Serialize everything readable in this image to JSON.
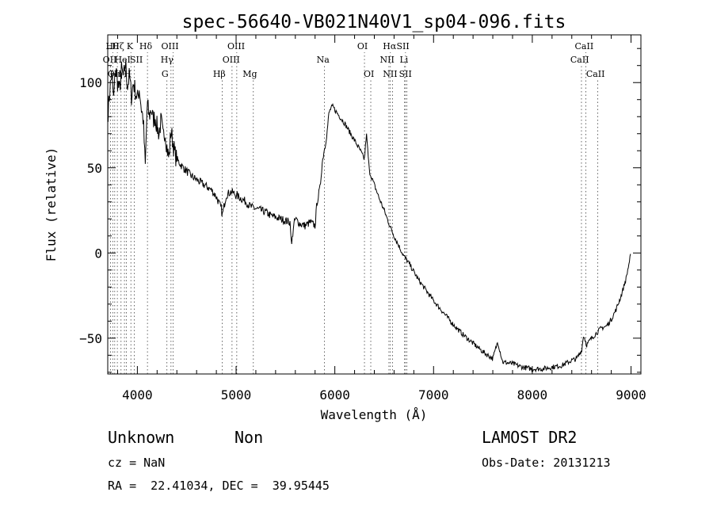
{
  "chart_data": {
    "type": "line",
    "title": "spec-56640-VB021N40V1_sp04-096.fits",
    "xlabel": "Wavelength (Å)",
    "ylabel": "Flux (relative)",
    "xlim": [
      3700,
      9100
    ],
    "ylim": [
      -71,
      128
    ],
    "xticks": [
      4000,
      5000,
      6000,
      7000,
      8000,
      9000
    ],
    "yticks": [
      -50,
      0,
      50,
      100
    ],
    "grid": false,
    "series": [
      {
        "x": [
          3700,
          3720,
          3740,
          3760,
          3780,
          3800,
          3820,
          3840,
          3860,
          3880,
          3900,
          3920,
          3940,
          3960,
          3980,
          4000,
          4020,
          4040,
          4060,
          4080,
          4100,
          4120,
          4140,
          4160,
          4180,
          4200,
          4220,
          4240,
          4260,
          4280,
          4300,
          4320,
          4340,
          4360,
          4380,
          4400,
          4450,
          4500,
          4550,
          4600,
          4650,
          4700,
          4750,
          4800,
          4850,
          4860,
          4880,
          4900,
          4950,
          5000,
          5050,
          5100,
          5150,
          5200,
          5250,
          5300,
          5350,
          5400,
          5450,
          5500,
          5550,
          5560,
          5580,
          5600,
          5650,
          5700,
          5750,
          5800,
          5820,
          5850,
          5870,
          5890,
          5900,
          5920,
          5940,
          5960,
          5980,
          6000,
          6050,
          6100,
          6150,
          6200,
          6250,
          6300,
          6320,
          6350,
          6400,
          6450,
          6500,
          6550,
          6600,
          6650,
          6700,
          6750,
          6800,
          6850,
          6900,
          6950,
          7000,
          7100,
          7200,
          7300,
          7400,
          7500,
          7550,
          7600,
          7650,
          7700,
          7800,
          7900,
          8000,
          8100,
          8200,
          8300,
          8400,
          8450,
          8500,
          8520,
          8550,
          8600,
          8650,
          8700,
          8750,
          8800,
          8850,
          8900,
          8950,
          8980,
          9000
        ],
        "y": [
          80,
          95,
          105,
          90,
          110,
          100,
          95,
          108,
          102,
          112,
          98,
          104,
          92,
          100,
          95,
          90,
          97,
          85,
          78,
          50,
          88,
          80,
          85,
          78,
          80,
          74,
          70,
          78,
          68,
          72,
          62,
          55,
          72,
          65,
          58,
          55,
          51,
          48,
          45,
          43,
          41,
          39,
          37,
          33,
          26,
          22,
          28,
          34,
          36,
          34,
          32,
          30,
          27,
          26,
          25,
          24,
          22,
          21,
          20,
          19,
          18,
          3,
          15,
          20,
          17,
          16,
          18,
          16,
          30,
          38,
          52,
          60,
          62,
          70,
          82,
          85,
          86,
          84,
          80,
          76,
          71,
          66,
          61,
          55,
          70,
          48,
          40,
          32,
          25,
          17,
          10,
          4,
          -2,
          -6,
          -11,
          -16,
          -20,
          -24,
          -28,
          -35,
          -42,
          -48,
          -53,
          -58,
          -60,
          -62,
          -52,
          -64,
          -65,
          -67,
          -68,
          -68,
          -67,
          -66,
          -63,
          -62,
          -57,
          -48,
          -54,
          -50,
          -47,
          -44,
          -43,
          -39,
          -33,
          -25,
          -15,
          -6,
          0
        ],
        "noise": 3
      }
    ],
    "lines": [
      {
        "x": 3727,
        "label": "OII",
        "row": 1,
        "lx": 3720
      },
      {
        "x": 3750,
        "label": "Hθ",
        "row": 0,
        "lx": 3745
      },
      {
        "x": 3771,
        "label": "Hη",
        "row": 2,
        "lx": 3785
      },
      {
        "x": 3797,
        "label": "Hζ",
        "row": 0,
        "lx": 3805
      },
      {
        "x": 3835,
        "label": "OII",
        "row": 2,
        "lx": 3770
      },
      {
        "x": 3869,
        "label": "HeI",
        "row": 1,
        "lx": 3850
      },
      {
        "x": 3889,
        "label": "H",
        "row": 2,
        "lx": 3900
      },
      {
        "x": 3934,
        "label": "K",
        "row": 0,
        "lx": 3925
      },
      {
        "x": 3970,
        "label": "SII",
        "row": 1,
        "lx": 3990
      },
      {
        "x": 4102,
        "label": "Hδ",
        "row": 0,
        "lx": 4085
      },
      {
        "x": 4300,
        "label": "G",
        "row": 2,
        "lx": 4280
      },
      {
        "x": 4341,
        "label": "Hγ",
        "row": 1,
        "lx": 4300
      },
      {
        "x": 4363,
        "label": "OIII",
        "row": 0,
        "lx": 4330
      },
      {
        "x": 4861,
        "label": "Hβ",
        "row": 2,
        "lx": 4830
      },
      {
        "x": 4959,
        "label": "OIII",
        "row": 1,
        "lx": 4950
      },
      {
        "x": 5007,
        "label": "OIII",
        "row": 0,
        "lx": 5000
      },
      {
        "x": 5175,
        "label": "Mg",
        "row": 2,
        "lx": 5140
      },
      {
        "x": 5893,
        "label": "Na",
        "row": 1,
        "lx": 5880
      },
      {
        "x": 6300,
        "label": "OI",
        "row": 0,
        "lx": 6280
      },
      {
        "x": 6364,
        "label": "OI",
        "row": 2,
        "lx": 6345
      },
      {
        "x": 6548,
        "label": "NII",
        "row": 1,
        "lx": 6530
      },
      {
        "x": 6563,
        "label": "Hα",
        "row": 0,
        "lx": 6555
      },
      {
        "x": 6584,
        "label": "NII",
        "row": 2,
        "lx": 6560
      },
      {
        "x": 6707,
        "label": "Li",
        "row": 1,
        "lx": 6700
      },
      {
        "x": 6716,
        "label": "SII",
        "row": 0,
        "lx": 6690
      },
      {
        "x": 6731,
        "label": "SII",
        "row": 2,
        "lx": 6715
      },
      {
        "x": 8498,
        "label": "CaII",
        "row": 1,
        "lx": 8480
      },
      {
        "x": 8542,
        "label": "CaII",
        "row": 0,
        "lx": 8525
      },
      {
        "x": 8662,
        "label": "CaII",
        "row": 2,
        "lx": 8640
      }
    ]
  },
  "info": {
    "class": "Unknown",
    "subclass": "Non",
    "cz": "cz = NaN",
    "coords": "RA =  22.41034, DEC =  39.95445",
    "survey": "LAMOST DR2",
    "obsdate": "Obs-Date: 20131213"
  }
}
